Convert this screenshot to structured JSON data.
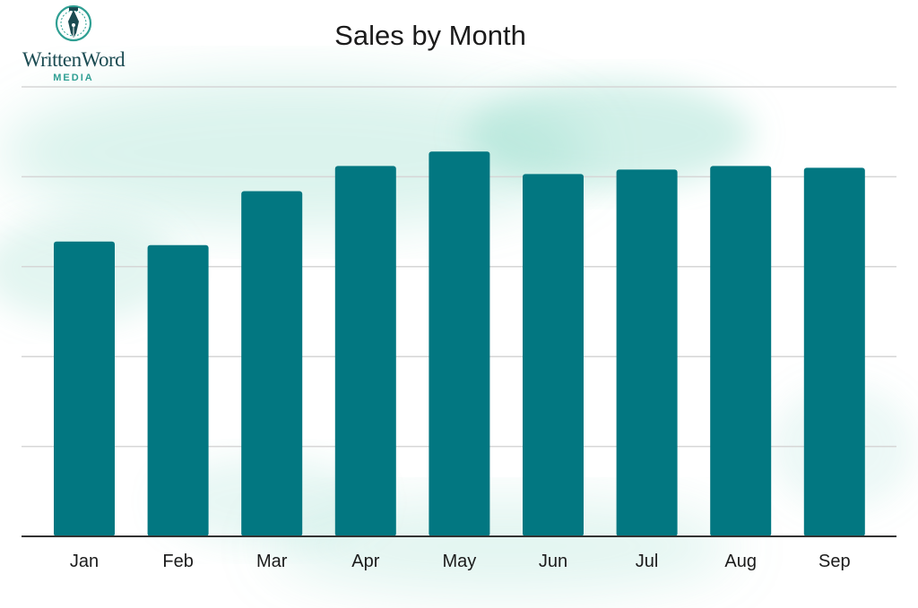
{
  "brand": {
    "name": "WrittenWord",
    "sub": "MEDIA",
    "mark_icon": "fountain-pen-nib-icon",
    "colors": {
      "dark": "#1b4b52",
      "accent": "#2f9f93"
    }
  },
  "colors": {
    "bar": "#027781",
    "grid": "#d6d6d6",
    "baseline": "#333333",
    "watercolor": "#7fd3c0"
  },
  "chart_data": {
    "type": "bar",
    "title": "Sales by Month",
    "xlabel": "",
    "ylabel": "",
    "categories": [
      "Jan",
      "Feb",
      "Mar",
      "Apr",
      "May",
      "Jun",
      "Jul",
      "Aug",
      "Sep"
    ],
    "values": [
      3.28,
      3.24,
      3.84,
      4.12,
      4.28,
      4.03,
      4.08,
      4.12,
      4.1
    ],
    "ylim": [
      0,
      5
    ],
    "grid": true,
    "y_tick_labels_shown": false,
    "legend": "none"
  }
}
